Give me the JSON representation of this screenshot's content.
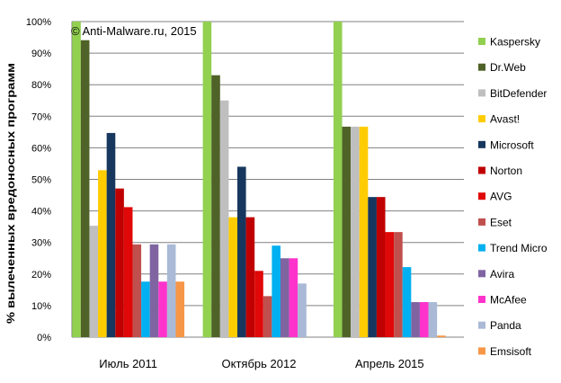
{
  "chart_data": {
    "type": "bar",
    "title": "",
    "watermark": "© Anti-Malware.ru, 2015",
    "xlabel": "",
    "ylabel": "% вылеченных вредоносных программ",
    "ylim": [
      0,
      100
    ],
    "yticks": [
      "0%",
      "10%",
      "20%",
      "30%",
      "40%",
      "50%",
      "60%",
      "70%",
      "80%",
      "90%",
      "100%"
    ],
    "grid": true,
    "legend_position": "right",
    "categories": [
      "Июль 2011",
      "Октябрь 2012",
      "Апрель 2015"
    ],
    "series": [
      {
        "name": "Kaspersky",
        "color": "#92d050",
        "values": [
          100,
          100,
          100
        ]
      },
      {
        "name": "Dr.Web",
        "color": "#4f6228",
        "values": [
          94.1,
          83,
          66.7
        ]
      },
      {
        "name": "BitDefender",
        "color": "#bfbfbf",
        "values": [
          35.3,
          75,
          66.7
        ]
      },
      {
        "name": "Avast!",
        "color": "#ffcc00",
        "values": [
          52.9,
          38,
          66.7
        ]
      },
      {
        "name": "Microsoft",
        "color": "#17375e",
        "values": [
          64.7,
          54,
          44.4
        ]
      },
      {
        "name": "Norton",
        "color": "#c00000",
        "values": [
          47.1,
          38,
          44.4
        ]
      },
      {
        "name": "AVG",
        "color": "#e00808",
        "values": [
          41.2,
          21,
          33.3
        ]
      },
      {
        "name": "Eset",
        "color": "#c0504d",
        "values": [
          29.4,
          13,
          33.3
        ]
      },
      {
        "name": "Trend Micro",
        "color": "#00b0f0",
        "values": [
          17.6,
          29,
          22.2
        ]
      },
      {
        "name": "Avira",
        "color": "#8064a2",
        "values": [
          29.4,
          25,
          11.1
        ]
      },
      {
        "name": "McAfee",
        "color": "#ff33cc",
        "values": [
          17.6,
          25,
          11.1
        ]
      },
      {
        "name": "Panda",
        "color": "#a9b9d6",
        "values": [
          29.4,
          17,
          11.1
        ]
      },
      {
        "name": "Emsisoft",
        "color": "#f79646",
        "values": [
          17.6,
          0,
          0.5
        ]
      }
    ]
  }
}
